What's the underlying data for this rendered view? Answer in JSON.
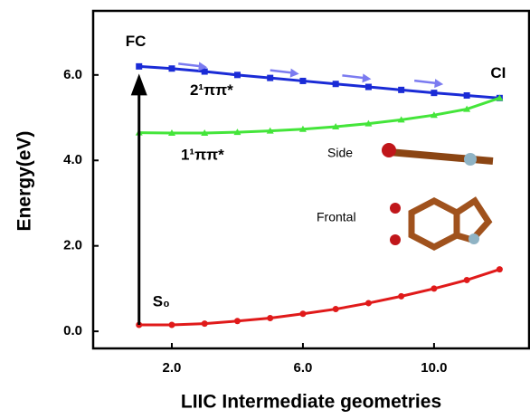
{
  "chart_data": {
    "type": "line",
    "x": [
      1,
      2,
      3,
      4,
      5,
      6,
      7,
      8,
      9,
      10,
      11,
      12
    ],
    "series": [
      {
        "name": "2¹ππ*",
        "color": "#1a2bd6",
        "values": [
          6.2,
          6.15,
          6.08,
          6.0,
          5.93,
          5.86,
          5.79,
          5.72,
          5.65,
          5.58,
          5.52,
          5.46
        ]
      },
      {
        "name": "1¹ππ*",
        "color": "#44e53a",
        "values": [
          4.65,
          4.64,
          4.64,
          4.66,
          4.69,
          4.73,
          4.79,
          4.86,
          4.95,
          5.06,
          5.2,
          5.46
        ]
      },
      {
        "name": "S₀",
        "color": "#e01a1a",
        "values": [
          0.15,
          0.15,
          0.18,
          0.24,
          0.31,
          0.41,
          0.52,
          0.66,
          0.82,
          1.0,
          1.2,
          1.45
        ]
      }
    ],
    "xlabel": "LIIC Intermediate geometries",
    "ylabel": "Energy(eV)",
    "xlim": [
      -0.4,
      12.9
    ],
    "ylim": [
      -0.4,
      7.5
    ],
    "xticks": [
      {
        "value": 2,
        "label": "2.0"
      },
      {
        "value": 6,
        "label": "6.0"
      },
      {
        "value": 10,
        "label": "10.0"
      }
    ],
    "yticks": [
      {
        "value": 0,
        "label": "0.0"
      },
      {
        "value": 2,
        "label": "2.0"
      },
      {
        "value": 4,
        "label": "4.0"
      },
      {
        "value": 6,
        "label": "6.0"
      }
    ],
    "annotations": {
      "fc": "FC",
      "ci": "CI",
      "side": "Side",
      "frontal": "Frontal"
    }
  }
}
